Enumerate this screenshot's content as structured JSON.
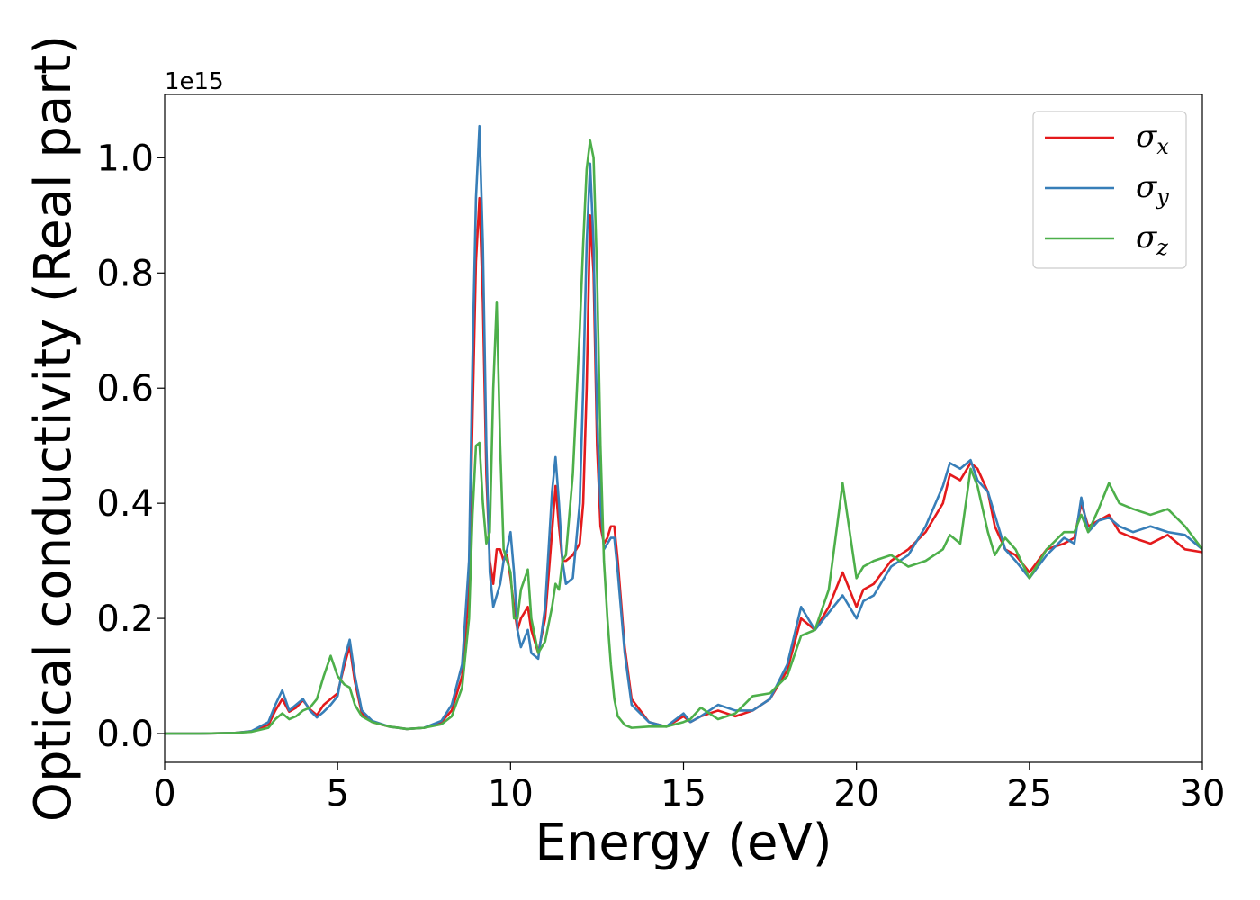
{
  "chart_data": {
    "type": "line",
    "xlabel": "Energy (eV)",
    "ylabel": "Optical conductivity (Real part)",
    "y_offset_label": "1e15",
    "xlim": [
      0,
      30
    ],
    "ylim": [
      -0.05,
      1.11
    ],
    "x_ticks": [
      0,
      5,
      10,
      15,
      20,
      25,
      30
    ],
    "x_tick_labels": [
      "0",
      "5",
      "10",
      "15",
      "20",
      "25",
      "30"
    ],
    "y_ticks": [
      0.0,
      0.2,
      0.4,
      0.6,
      0.8,
      1.0
    ],
    "y_tick_labels": [
      "0.0",
      "0.2",
      "0.4",
      "0.6",
      "0.8",
      "1.0"
    ],
    "grid": false,
    "legend_position": "top-right",
    "series": [
      {
        "name": "σx",
        "legend_base": "σ",
        "legend_sub": "x",
        "color": "#e41a1c",
        "x": [
          0,
          1,
          2,
          2.5,
          3,
          3.2,
          3.4,
          3.6,
          3.8,
          4.0,
          4.2,
          4.4,
          4.6,
          4.8,
          5.0,
          5.2,
          5.35,
          5.5,
          5.7,
          6.0,
          6.5,
          7.0,
          7.5,
          8.0,
          8.3,
          8.6,
          8.8,
          8.9,
          9.0,
          9.1,
          9.2,
          9.3,
          9.4,
          9.5,
          9.6,
          9.7,
          9.8,
          9.9,
          10.0,
          10.1,
          10.2,
          10.3,
          10.5,
          10.6,
          10.8,
          11.0,
          11.2,
          11.3,
          11.4,
          11.5,
          11.6,
          11.8,
          12.0,
          12.1,
          12.2,
          12.3,
          12.4,
          12.5,
          12.6,
          12.7,
          12.8,
          12.9,
          13.0,
          13.1,
          13.3,
          13.5,
          14.0,
          14.5,
          15.0,
          15.2,
          15.5,
          16.0,
          16.5,
          17.0,
          17.5,
          18.0,
          18.4,
          18.8,
          19.2,
          19.6,
          20.0,
          20.2,
          20.5,
          21.0,
          21.5,
          22.0,
          22.5,
          22.7,
          23.0,
          23.3,
          23.5,
          23.8,
          24.0,
          24.3,
          24.6,
          25.0,
          25.5,
          26.0,
          26.3,
          26.5,
          26.7,
          27.0,
          27.3,
          27.6,
          28.0,
          28.5,
          29.0,
          29.5,
          30.0
        ],
        "y": [
          0,
          0,
          0.001,
          0.004,
          0.015,
          0.04,
          0.06,
          0.038,
          0.045,
          0.058,
          0.042,
          0.032,
          0.05,
          0.06,
          0.07,
          0.12,
          0.152,
          0.09,
          0.035,
          0.02,
          0.012,
          0.008,
          0.01,
          0.02,
          0.04,
          0.1,
          0.25,
          0.55,
          0.82,
          0.93,
          0.75,
          0.45,
          0.3,
          0.26,
          0.32,
          0.32,
          0.3,
          0.31,
          0.27,
          0.22,
          0.18,
          0.2,
          0.22,
          0.18,
          0.14,
          0.2,
          0.35,
          0.43,
          0.36,
          0.3,
          0.3,
          0.31,
          0.33,
          0.4,
          0.6,
          0.9,
          0.8,
          0.5,
          0.36,
          0.33,
          0.34,
          0.36,
          0.36,
          0.3,
          0.15,
          0.06,
          0.02,
          0.012,
          0.03,
          0.02,
          0.03,
          0.04,
          0.03,
          0.04,
          0.06,
          0.11,
          0.2,
          0.18,
          0.22,
          0.28,
          0.22,
          0.25,
          0.26,
          0.3,
          0.32,
          0.35,
          0.4,
          0.45,
          0.44,
          0.47,
          0.46,
          0.42,
          0.36,
          0.32,
          0.31,
          0.28,
          0.32,
          0.33,
          0.34,
          0.4,
          0.36,
          0.37,
          0.38,
          0.35,
          0.34,
          0.33,
          0.345,
          0.32,
          0.315
        ]
      },
      {
        "name": "σy",
        "legend_base": "σ",
        "legend_sub": "y",
        "color": "#377eb8",
        "x": [
          0,
          1,
          2,
          2.5,
          3,
          3.2,
          3.4,
          3.6,
          3.8,
          4.0,
          4.2,
          4.4,
          4.6,
          4.8,
          5.0,
          5.2,
          5.35,
          5.5,
          5.7,
          6.0,
          6.5,
          7.0,
          7.5,
          8.0,
          8.3,
          8.6,
          8.8,
          8.9,
          9.0,
          9.1,
          9.2,
          9.3,
          9.4,
          9.5,
          9.6,
          9.7,
          9.8,
          9.9,
          10.0,
          10.1,
          10.2,
          10.3,
          10.5,
          10.6,
          10.8,
          11.0,
          11.2,
          11.3,
          11.4,
          11.5,
          11.6,
          11.8,
          12.0,
          12.1,
          12.2,
          12.3,
          12.4,
          12.5,
          12.6,
          12.7,
          12.8,
          12.9,
          13.0,
          13.1,
          13.3,
          13.5,
          14.0,
          14.5,
          15.0,
          15.2,
          15.5,
          16.0,
          16.5,
          17.0,
          17.5,
          18.0,
          18.4,
          18.8,
          19.2,
          19.6,
          20.0,
          20.2,
          20.5,
          21.0,
          21.5,
          22.0,
          22.5,
          22.7,
          23.0,
          23.3,
          23.5,
          23.8,
          24.0,
          24.3,
          24.6,
          25.0,
          25.5,
          26.0,
          26.3,
          26.5,
          26.7,
          27.0,
          27.3,
          27.6,
          28.0,
          28.5,
          29.0,
          29.5,
          30.0
        ],
        "y": [
          0,
          0,
          0.001,
          0.004,
          0.02,
          0.05,
          0.075,
          0.04,
          0.05,
          0.06,
          0.04,
          0.028,
          0.038,
          0.05,
          0.065,
          0.13,
          0.163,
          0.1,
          0.04,
          0.022,
          0.012,
          0.008,
          0.01,
          0.022,
          0.05,
          0.12,
          0.3,
          0.65,
          0.93,
          1.055,
          0.85,
          0.5,
          0.28,
          0.22,
          0.24,
          0.26,
          0.3,
          0.32,
          0.35,
          0.28,
          0.18,
          0.15,
          0.18,
          0.14,
          0.13,
          0.22,
          0.42,
          0.48,
          0.4,
          0.3,
          0.26,
          0.27,
          0.4,
          0.6,
          0.85,
          0.99,
          0.85,
          0.55,
          0.4,
          0.32,
          0.33,
          0.34,
          0.34,
          0.28,
          0.14,
          0.05,
          0.02,
          0.012,
          0.035,
          0.02,
          0.03,
          0.05,
          0.04,
          0.04,
          0.06,
          0.12,
          0.22,
          0.18,
          0.21,
          0.24,
          0.2,
          0.23,
          0.24,
          0.29,
          0.31,
          0.36,
          0.43,
          0.47,
          0.46,
          0.475,
          0.44,
          0.42,
          0.38,
          0.32,
          0.3,
          0.27,
          0.31,
          0.34,
          0.33,
          0.41,
          0.35,
          0.37,
          0.375,
          0.36,
          0.35,
          0.36,
          0.35,
          0.345,
          0.32
        ]
      },
      {
        "name": "σz",
        "legend_base": "σ",
        "legend_sub": "z",
        "color": "#4daf4a",
        "x": [
          0,
          1,
          2,
          2.5,
          3,
          3.2,
          3.4,
          3.6,
          3.8,
          4.0,
          4.2,
          4.4,
          4.6,
          4.8,
          5.0,
          5.2,
          5.35,
          5.5,
          5.7,
          6.0,
          6.5,
          7.0,
          7.5,
          8.0,
          8.3,
          8.6,
          8.8,
          8.9,
          9.0,
          9.1,
          9.2,
          9.3,
          9.4,
          9.5,
          9.6,
          9.7,
          9.8,
          9.9,
          10.0,
          10.1,
          10.2,
          10.3,
          10.5,
          10.6,
          10.8,
          11.0,
          11.2,
          11.3,
          11.4,
          11.5,
          11.6,
          11.8,
          12.0,
          12.1,
          12.2,
          12.3,
          12.4,
          12.5,
          12.6,
          12.7,
          12.8,
          12.9,
          13.0,
          13.1,
          13.3,
          13.5,
          14.0,
          14.5,
          15.0,
          15.2,
          15.5,
          16.0,
          16.5,
          17.0,
          17.5,
          18.0,
          18.4,
          18.8,
          19.2,
          19.6,
          20.0,
          20.2,
          20.5,
          21.0,
          21.5,
          22.0,
          22.5,
          22.7,
          23.0,
          23.3,
          23.5,
          23.8,
          24.0,
          24.3,
          24.6,
          25.0,
          25.5,
          26.0,
          26.3,
          26.5,
          26.7,
          27.0,
          27.3,
          27.6,
          28.0,
          28.5,
          29.0,
          29.5,
          30.0
        ],
        "y": [
          0,
          0,
          0.001,
          0.003,
          0.01,
          0.025,
          0.035,
          0.025,
          0.03,
          0.04,
          0.045,
          0.06,
          0.1,
          0.135,
          0.1,
          0.085,
          0.08,
          0.05,
          0.03,
          0.02,
          0.012,
          0.008,
          0.01,
          0.016,
          0.03,
          0.08,
          0.2,
          0.38,
          0.5,
          0.505,
          0.4,
          0.33,
          0.35,
          0.6,
          0.75,
          0.5,
          0.32,
          0.3,
          0.28,
          0.2,
          0.2,
          0.25,
          0.285,
          0.2,
          0.14,
          0.16,
          0.22,
          0.26,
          0.25,
          0.3,
          0.31,
          0.45,
          0.7,
          0.85,
          0.98,
          1.03,
          1.0,
          0.8,
          0.5,
          0.3,
          0.2,
          0.12,
          0.06,
          0.03,
          0.015,
          0.01,
          0.012,
          0.012,
          0.02,
          0.025,
          0.045,
          0.025,
          0.035,
          0.065,
          0.07,
          0.1,
          0.17,
          0.18,
          0.25,
          0.435,
          0.27,
          0.29,
          0.3,
          0.31,
          0.29,
          0.3,
          0.32,
          0.345,
          0.33,
          0.46,
          0.43,
          0.35,
          0.31,
          0.34,
          0.32,
          0.27,
          0.32,
          0.35,
          0.35,
          0.38,
          0.35,
          0.39,
          0.435,
          0.4,
          0.39,
          0.38,
          0.39,
          0.36,
          0.32
        ]
      }
    ]
  }
}
